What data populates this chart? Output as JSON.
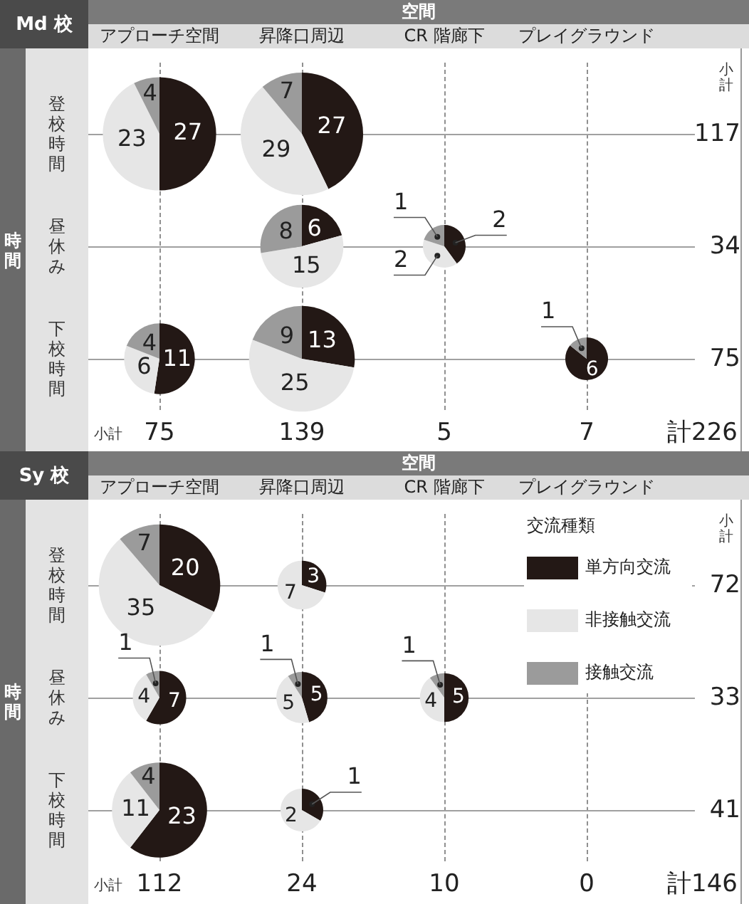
{
  "chart_data": [
    {
      "type": "other",
      "title": "Md 校",
      "xlabel": "空間",
      "ylabel": "時間",
      "categories": [
        "アプローチ空間",
        "昇降口周辺",
        "CR 階廊下",
        "プレイグラウンド"
      ],
      "y_categories": [
        "登校時間",
        "昼休み",
        "下校時間"
      ],
      "y2label": "小計",
      "y2_categories": [
        "117",
        "34",
        "75"
      ],
      "totals": [
        "75",
        "139",
        "5",
        "7"
      ],
      "annotations": [
        "小計",
        "計226"
      ]
    },
    {
      "type": "pie",
      "categories": [
        null,
        null,
        null
      ],
      "values": [
        27,
        23,
        4
      ],
      "colors": [
        "#231815",
        "#e6e6e6",
        "#9b9b9b"
      ],
      "data_labels": true
    },
    {
      "type": "pie",
      "categories": [
        null,
        null,
        null
      ],
      "values": [
        27,
        29,
        7
      ],
      "colors": [
        "#231815",
        "#e6e6e6",
        "#9b9b9b"
      ],
      "data_labels": true
    },
    {
      "type": "pie",
      "categories": [
        null,
        null,
        null
      ],
      "values": [
        6,
        15,
        8
      ],
      "colors": [
        "#231815",
        "#e6e6e6",
        "#9b9b9b"
      ],
      "data_labels": true
    },
    {
      "type": "pie",
      "categories": [
        null,
        null,
        null
      ],
      "values": [
        2,
        2,
        1
      ],
      "colors": [
        "#231815",
        "#e6e6e6",
        "#9b9b9b"
      ],
      "data_labels": true
    },
    {
      "type": "pie",
      "categories": [
        null,
        null,
        null
      ],
      "values": [
        11,
        6,
        4
      ],
      "colors": [
        "#231815",
        "#e6e6e6",
        "#9b9b9b"
      ],
      "data_labels": true
    },
    {
      "type": "pie",
      "categories": [
        null,
        null,
        null
      ],
      "values": [
        13,
        25,
        9
      ],
      "colors": [
        "#231815",
        "#e6e6e6",
        "#9b9b9b"
      ],
      "data_labels": true
    },
    {
      "type": "pie",
      "categories": [
        null,
        null,
        null
      ],
      "values": [
        6,
        null,
        1
      ],
      "colors": [
        "#231815",
        "#e6e6e6",
        "#9b9b9b"
      ],
      "data_labels": true
    },
    {
      "type": "other",
      "title": "Sy 校",
      "xlabel": "空間",
      "ylabel": "時間",
      "categories": [
        "アプローチ空間",
        "昇降口周辺",
        "CR 階廊下",
        "プレイグラウンド"
      ],
      "y_categories": [
        "登校時間",
        "昼休み",
        "下校時間"
      ],
      "y2label": "小計",
      "y2_categories": [
        "72",
        "33",
        "41"
      ],
      "totals": [
        "112",
        "24",
        "10",
        "0"
      ],
      "annotations": [
        "小計",
        "計146"
      ]
    },
    {
      "type": "pie",
      "categories": [
        "単方向交流",
        "非接触交流",
        "接触交流"
      ],
      "values": [
        20,
        35,
        7
      ],
      "colors": [
        "#231815",
        "#e6e6e6",
        "#9b9b9b"
      ],
      "data_labels": true,
      "legend": "right",
      "legend_title": "交流種類"
    },
    {
      "type": "pie",
      "categories": [
        null,
        null,
        null
      ],
      "values": [
        3,
        7,
        null
      ],
      "colors": [
        "#231815",
        "#e6e6e6",
        "#9b9b9b"
      ],
      "data_labels": true
    },
    {
      "type": "pie",
      "categories": [
        null,
        null,
        null
      ],
      "values": [
        7,
        4,
        1
      ],
      "colors": [
        "#231815",
        "#e6e6e6",
        "#9b9b9b"
      ],
      "data_labels": true
    },
    {
      "type": "pie",
      "categories": [
        null,
        null,
        null
      ],
      "values": [
        5,
        5,
        1
      ],
      "colors": [
        "#231815",
        "#e6e6e6",
        "#9b9b9b"
      ],
      "data_labels": true
    },
    {
      "type": "pie",
      "categories": [
        null,
        null,
        null
      ],
      "values": [
        5,
        4,
        1
      ],
      "colors": [
        "#231815",
        "#e6e6e6",
        "#9b9b9b"
      ],
      "data_labels": true
    },
    {
      "type": "pie",
      "categories": [
        null,
        null,
        null
      ],
      "values": [
        23,
        11,
        4
      ],
      "colors": [
        "#231815",
        "#e6e6e6",
        "#9b9b9b"
      ],
      "data_labels": true
    },
    {
      "type": "pie",
      "categories": [
        null,
        null,
        null
      ],
      "values": [
        1,
        2,
        null
      ],
      "colors": [
        "#231815",
        "#e6e6e6",
        "#9b9b9b"
      ],
      "data_labels": true
    }
  ]
}
